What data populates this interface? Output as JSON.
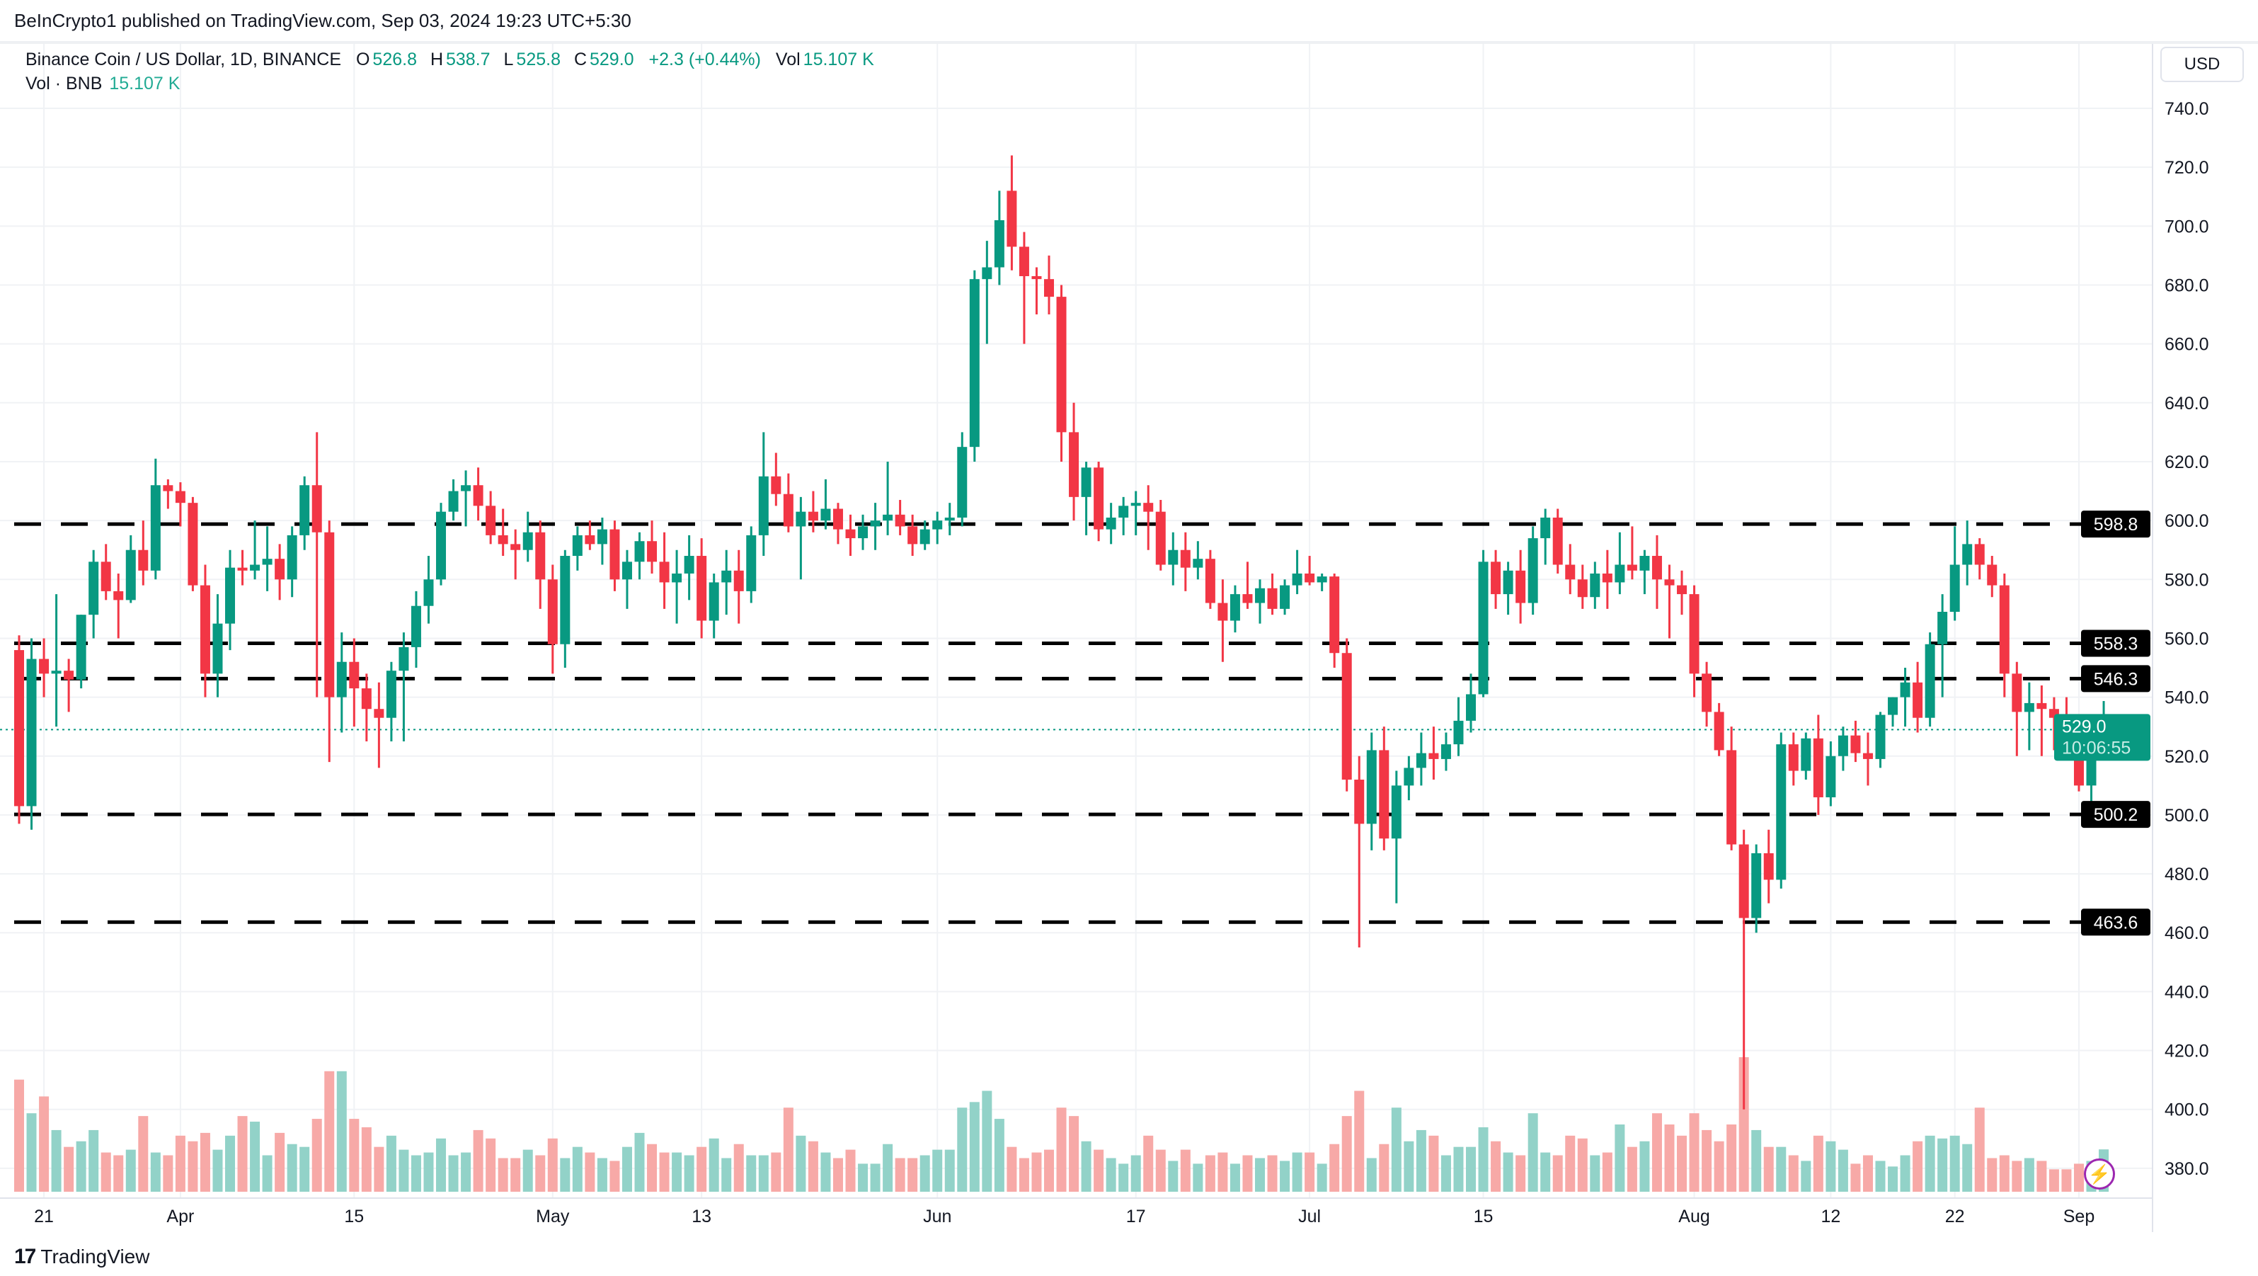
{
  "header": {
    "published": "BeInCrypto1 published on TradingView.com, Sep 03, 2024 19:23 UTC+5:30"
  },
  "legend": {
    "symbol": "Binance Coin / US Dollar, 1D, BINANCE",
    "o_label": "O",
    "o": "526.8",
    "h_label": "H",
    "h": "538.7",
    "l_label": "L",
    "l": "525.8",
    "c_label": "C",
    "c": "529.0",
    "change": "+2.3 (+0.44%)",
    "vol_label": "Vol",
    "vol": "15.107 K"
  },
  "volume_legend": {
    "label": "Vol · BNB",
    "value": "15.107 K"
  },
  "currency_button": "USD",
  "footer": {
    "logo_text": "TradingView",
    "logo_mark": "17"
  },
  "colors": {
    "up": "#089981",
    "down": "#f23645",
    "up_volume": "#92d2c8",
    "down_volume": "#f7a9a7",
    "level_line": "#000000",
    "indicator_icon": "#9c27b0"
  },
  "icons": {
    "indicator": "lightning-bolt-icon",
    "logo": "tradingview-logo-icon"
  },
  "chart_data": {
    "type": "candlestick",
    "title": "Binance Coin / US Dollar, 1D, BINANCE",
    "ylim": [
      370,
      750
    ],
    "y_ticks": [
      "740.0",
      "720.0",
      "700.0",
      "680.0",
      "660.0",
      "640.0",
      "620.0",
      "600.0",
      "580.0",
      "560.0",
      "540.0",
      "520.0",
      "500.0",
      "480.0",
      "460.0",
      "440.0",
      "420.0",
      "400.0",
      "380.0"
    ],
    "x_ticks": [
      {
        "label": "21",
        "date": "2024-03-21"
      },
      {
        "label": "Apr",
        "date": "2024-04-01"
      },
      {
        "label": "15",
        "date": "2024-04-15"
      },
      {
        "label": "May",
        "date": "2024-05-01"
      },
      {
        "label": "13",
        "date": "2024-05-13"
      },
      {
        "label": "Jun",
        "date": "2024-06-01"
      },
      {
        "label": "17",
        "date": "2024-06-17"
      },
      {
        "label": "Jul",
        "date": "2024-07-01"
      },
      {
        "label": "15",
        "date": "2024-07-15"
      },
      {
        "label": "Aug",
        "date": "2024-08-01"
      },
      {
        "label": "12",
        "date": "2024-08-12"
      },
      {
        "label": "22",
        "date": "2024-08-22"
      },
      {
        "label": "Sep",
        "date": "2024-09-01"
      }
    ],
    "grid": true,
    "levels": [
      "598.8",
      "558.3",
      "546.3",
      "500.2",
      "463.6"
    ],
    "last_price": {
      "value": "529.0",
      "countdown": "10:06:55"
    },
    "columns": [
      "date",
      "open",
      "high",
      "low",
      "close",
      "volume_k"
    ],
    "candles": [
      [
        "2024-03-19",
        556,
        561,
        497,
        503,
        40
      ],
      [
        "2024-03-20",
        503,
        560,
        495,
        553,
        28
      ],
      [
        "2024-03-21",
        553,
        560,
        540,
        548,
        34
      ],
      [
        "2024-03-22",
        548,
        575,
        530,
        549,
        22
      ],
      [
        "2024-03-23",
        549,
        553,
        535,
        546,
        16
      ],
      [
        "2024-03-24",
        546,
        568,
        543,
        568,
        18
      ],
      [
        "2024-03-25",
        568,
        590,
        560,
        586,
        22
      ],
      [
        "2024-03-26",
        586,
        592,
        573,
        576,
        14
      ],
      [
        "2024-03-27",
        576,
        582,
        560,
        573,
        13
      ],
      [
        "2024-03-28",
        573,
        595,
        572,
        590,
        15
      ],
      [
        "2024-03-29",
        590,
        600,
        578,
        583,
        27
      ],
      [
        "2024-03-30",
        583,
        621,
        580,
        612,
        14
      ],
      [
        "2024-03-31",
        612,
        614,
        604,
        610,
        13
      ],
      [
        "2024-04-01",
        610,
        613,
        598,
        606,
        20
      ],
      [
        "2024-04-02",
        606,
        608,
        576,
        578,
        18
      ],
      [
        "2024-04-03",
        578,
        585,
        540,
        548,
        21
      ],
      [
        "2024-04-04",
        548,
        575,
        540,
        565,
        15
      ],
      [
        "2024-04-05",
        565,
        590,
        556,
        584,
        20
      ],
      [
        "2024-04-06",
        584,
        590,
        578,
        583,
        27
      ],
      [
        "2024-04-07",
        583,
        600,
        580,
        585,
        25
      ],
      [
        "2024-04-08",
        585,
        598,
        576,
        587,
        13
      ],
      [
        "2024-04-09",
        587,
        592,
        573,
        580,
        21
      ],
      [
        "2024-04-10",
        580,
        598,
        574,
        595,
        17
      ],
      [
        "2024-04-11",
        595,
        615,
        590,
        612,
        16
      ],
      [
        "2024-04-12",
        612,
        630,
        540,
        596,
        26
      ],
      [
        "2024-04-13",
        596,
        600,
        518,
        540,
        43
      ],
      [
        "2024-04-14",
        540,
        562,
        528,
        552,
        43
      ],
      [
        "2024-04-15",
        552,
        560,
        530,
        543,
        26
      ],
      [
        "2024-04-16",
        543,
        548,
        525,
        536,
        23
      ],
      [
        "2024-04-17",
        536,
        545,
        516,
        533,
        16
      ],
      [
        "2024-04-18",
        533,
        552,
        525,
        549,
        20
      ],
      [
        "2024-04-19",
        549,
        562,
        525,
        557,
        15
      ],
      [
        "2024-04-20",
        557,
        576,
        550,
        571,
        13
      ],
      [
        "2024-04-21",
        571,
        588,
        565,
        580,
        14
      ],
      [
        "2024-04-22",
        580,
        606,
        578,
        603,
        19
      ],
      [
        "2024-04-23",
        603,
        614,
        600,
        610,
        13
      ],
      [
        "2024-04-24",
        610,
        617,
        598,
        612,
        14
      ],
      [
        "2024-04-25",
        612,
        618,
        600,
        605,
        22
      ],
      [
        "2024-04-26",
        605,
        610,
        592,
        595,
        19
      ],
      [
        "2024-04-27",
        595,
        604,
        588,
        592,
        12
      ],
      [
        "2024-04-28",
        592,
        597,
        580,
        590,
        12
      ],
      [
        "2024-04-29",
        590,
        603,
        586,
        596,
        15
      ],
      [
        "2024-04-30",
        596,
        600,
        570,
        580,
        13
      ],
      [
        "2024-05-01",
        580,
        585,
        548,
        558,
        19
      ],
      [
        "2024-05-02",
        558,
        590,
        550,
        588,
        12
      ],
      [
        "2024-05-03",
        588,
        598,
        583,
        595,
        16
      ],
      [
        "2024-05-04",
        595,
        600,
        590,
        592,
        14
      ],
      [
        "2024-05-05",
        592,
        601,
        585,
        597,
        12
      ],
      [
        "2024-05-06",
        597,
        600,
        576,
        580,
        11
      ],
      [
        "2024-05-07",
        580,
        590,
        570,
        586,
        16
      ],
      [
        "2024-05-08",
        586,
        596,
        580,
        593,
        21
      ],
      [
        "2024-05-09",
        593,
        600,
        582,
        586,
        17
      ],
      [
        "2024-05-10",
        586,
        596,
        570,
        579,
        14
      ],
      [
        "2024-05-11",
        579,
        590,
        565,
        582,
        14
      ],
      [
        "2024-05-12",
        582,
        595,
        573,
        588,
        13
      ],
      [
        "2024-05-13",
        588,
        594,
        560,
        566,
        16
      ],
      [
        "2024-05-14",
        566,
        582,
        560,
        579,
        19
      ],
      [
        "2024-05-15",
        579,
        590,
        568,
        583,
        12
      ],
      [
        "2024-05-16",
        583,
        590,
        565,
        576,
        17
      ],
      [
        "2024-05-17",
        576,
        598,
        572,
        595,
        13
      ],
      [
        "2024-05-18",
        595,
        630,
        588,
        615,
        13
      ],
      [
        "2024-05-19",
        615,
        623,
        605,
        609,
        14
      ],
      [
        "2024-05-20",
        609,
        616,
        596,
        598,
        30
      ],
      [
        "2024-05-21",
        598,
        608,
        580,
        603,
        20
      ],
      [
        "2024-05-22",
        603,
        610,
        596,
        600,
        18
      ],
      [
        "2024-05-23",
        600,
        614,
        597,
        604,
        14
      ],
      [
        "2024-05-24",
        604,
        606,
        592,
        597,
        12
      ],
      [
        "2024-05-25",
        597,
        602,
        588,
        594,
        15
      ],
      [
        "2024-05-26",
        594,
        602,
        590,
        598,
        10
      ],
      [
        "2024-05-27",
        598,
        606,
        590,
        600,
        10
      ],
      [
        "2024-05-28",
        600,
        620,
        595,
        602,
        17
      ],
      [
        "2024-05-29",
        602,
        607,
        595,
        598,
        12
      ],
      [
        "2024-05-30",
        598,
        602,
        588,
        592,
        12
      ],
      [
        "2024-05-31",
        592,
        600,
        590,
        597,
        13
      ],
      [
        "2024-06-01",
        597,
        603,
        592,
        600,
        15
      ],
      [
        "2024-06-02",
        600,
        606,
        595,
        601,
        15
      ],
      [
        "2024-06-03",
        601,
        630,
        598,
        625,
        30
      ],
      [
        "2024-06-04",
        625,
        685,
        620,
        682,
        32
      ],
      [
        "2024-06-05",
        682,
        695,
        660,
        686,
        36
      ],
      [
        "2024-06-06",
        686,
        712,
        680,
        702,
        26
      ],
      [
        "2024-06-07",
        712,
        724,
        685,
        693,
        16
      ],
      [
        "2024-06-08",
        693,
        698,
        660,
        683,
        12
      ],
      [
        "2024-06-09",
        683,
        686,
        670,
        682,
        14
      ],
      [
        "2024-06-10",
        682,
        690,
        670,
        676,
        15
      ],
      [
        "2024-06-11",
        676,
        680,
        620,
        630,
        30
      ],
      [
        "2024-06-12",
        630,
        640,
        600,
        608,
        27
      ],
      [
        "2024-06-13",
        608,
        620,
        595,
        618,
        18
      ],
      [
        "2024-06-14",
        618,
        620,
        593,
        597,
        15
      ],
      [
        "2024-06-15",
        597,
        606,
        592,
        601,
        12
      ],
      [
        "2024-06-16",
        601,
        608,
        595,
        605,
        10
      ],
      [
        "2024-06-17",
        605,
        610,
        595,
        606,
        13
      ],
      [
        "2024-06-18",
        606,
        612,
        590,
        603,
        20
      ],
      [
        "2024-06-19",
        603,
        607,
        583,
        585,
        15
      ],
      [
        "2024-06-20",
        585,
        596,
        578,
        590,
        11
      ],
      [
        "2024-06-21",
        590,
        596,
        576,
        584,
        15
      ],
      [
        "2024-06-22",
        584,
        593,
        580,
        587,
        10
      ],
      [
        "2024-06-23",
        587,
        590,
        570,
        572,
        13
      ],
      [
        "2024-06-24",
        572,
        580,
        552,
        566,
        14
      ],
      [
        "2024-06-25",
        566,
        578,
        562,
        575,
        10
      ],
      [
        "2024-06-26",
        575,
        586,
        570,
        572,
        13
      ],
      [
        "2024-06-27",
        572,
        580,
        565,
        577,
        12
      ],
      [
        "2024-06-28",
        577,
        582,
        568,
        570,
        13
      ],
      [
        "2024-06-29",
        570,
        580,
        568,
        578,
        11
      ],
      [
        "2024-06-30",
        578,
        590,
        575,
        582,
        14
      ],
      [
        "2024-07-01",
        582,
        588,
        578,
        579,
        14
      ],
      [
        "2024-07-02",
        579,
        582,
        576,
        581,
        10
      ],
      [
        "2024-07-03",
        581,
        582,
        550,
        555,
        17
      ],
      [
        "2024-07-04",
        555,
        560,
        508,
        512,
        27
      ],
      [
        "2024-07-05",
        512,
        520,
        455,
        497,
        36
      ],
      [
        "2024-07-06",
        497,
        528,
        488,
        522,
        12
      ],
      [
        "2024-07-07",
        522,
        530,
        488,
        492,
        17
      ],
      [
        "2024-07-08",
        492,
        515,
        470,
        510,
        30
      ],
      [
        "2024-07-09",
        510,
        520,
        505,
        516,
        18
      ],
      [
        "2024-07-10",
        516,
        528,
        510,
        521,
        22
      ],
      [
        "2024-07-11",
        521,
        530,
        512,
        519,
        20
      ],
      [
        "2024-07-12",
        519,
        528,
        515,
        524,
        13
      ],
      [
        "2024-07-13",
        524,
        540,
        520,
        532,
        16
      ],
      [
        "2024-07-14",
        532,
        548,
        528,
        541,
        16
      ],
      [
        "2024-07-15",
        541,
        590,
        540,
        586,
        23
      ],
      [
        "2024-07-16",
        586,
        590,
        570,
        575,
        18
      ],
      [
        "2024-07-17",
        575,
        586,
        568,
        583,
        14
      ],
      [
        "2024-07-18",
        583,
        590,
        565,
        572,
        13
      ],
      [
        "2024-07-19",
        572,
        598,
        568,
        594,
        28
      ],
      [
        "2024-07-20",
        594,
        604,
        585,
        601,
        14
      ],
      [
        "2024-07-21",
        601,
        604,
        582,
        585,
        13
      ],
      [
        "2024-07-22",
        585,
        592,
        575,
        580,
        20
      ],
      [
        "2024-07-23",
        580,
        585,
        570,
        574,
        19
      ],
      [
        "2024-07-24",
        574,
        586,
        570,
        582,
        13
      ],
      [
        "2024-07-25",
        582,
        590,
        570,
        579,
        14
      ],
      [
        "2024-07-26",
        579,
        596,
        575,
        585,
        24
      ],
      [
        "2024-07-27",
        585,
        598,
        580,
        583,
        16
      ],
      [
        "2024-07-28",
        583,
        590,
        575,
        588,
        18
      ],
      [
        "2024-07-29",
        588,
        595,
        570,
        580,
        28
      ],
      [
        "2024-07-30",
        580,
        585,
        560,
        578,
        24
      ],
      [
        "2024-07-31",
        578,
        583,
        568,
        575,
        20
      ],
      [
        "2024-08-01",
        575,
        578,
        540,
        548,
        28
      ],
      [
        "2024-08-02",
        548,
        552,
        530,
        535,
        22
      ],
      [
        "2024-08-03",
        535,
        538,
        520,
        522,
        18
      ],
      [
        "2024-08-04",
        522,
        530,
        488,
        490,
        24
      ],
      [
        "2024-08-05",
        490,
        495,
        400,
        465,
        48
      ],
      [
        "2024-08-06",
        465,
        490,
        460,
        487,
        22
      ],
      [
        "2024-08-07",
        487,
        495,
        470,
        478,
        16
      ],
      [
        "2024-08-08",
        478,
        528,
        475,
        524,
        16
      ],
      [
        "2024-08-09",
        524,
        528,
        510,
        515,
        13
      ],
      [
        "2024-08-10",
        515,
        528,
        512,
        526,
        11
      ],
      [
        "2024-08-11",
        526,
        534,
        500,
        506,
        20
      ],
      [
        "2024-08-12",
        506,
        525,
        503,
        520,
        18
      ],
      [
        "2024-08-13",
        520,
        530,
        515,
        527,
        15
      ],
      [
        "2024-08-14",
        527,
        532,
        518,
        521,
        10
      ],
      [
        "2024-08-15",
        521,
        528,
        510,
        519,
        13
      ],
      [
        "2024-08-16",
        519,
        535,
        516,
        534,
        11
      ],
      [
        "2024-08-17",
        534,
        540,
        530,
        540,
        9
      ],
      [
        "2024-08-18",
        540,
        550,
        530,
        545,
        13
      ],
      [
        "2024-08-19",
        545,
        552,
        528,
        533,
        18
      ],
      [
        "2024-08-20",
        533,
        562,
        530,
        558,
        20
      ],
      [
        "2024-08-21",
        558,
        575,
        540,
        569,
        19
      ],
      [
        "2024-08-22",
        569,
        598,
        566,
        585,
        20
      ],
      [
        "2024-08-23",
        585,
        600,
        578,
        592,
        17
      ],
      [
        "2024-08-24",
        592,
        594,
        580,
        585,
        30
      ],
      [
        "2024-08-25",
        585,
        588,
        574,
        578,
        12
      ],
      [
        "2024-08-26",
        578,
        582,
        540,
        548,
        13
      ],
      [
        "2024-08-27",
        548,
        552,
        520,
        535,
        11
      ],
      [
        "2024-08-28",
        535,
        545,
        522,
        538,
        12
      ],
      [
        "2024-08-29",
        538,
        544,
        520,
        536,
        11
      ],
      [
        "2024-08-30",
        536,
        540,
        522,
        533,
        8
      ],
      [
        "2024-08-31",
        533,
        540,
        528,
        530,
        8
      ],
      [
        "2024-09-01",
        530,
        532,
        508,
        510,
        10
      ],
      [
        "2024-09-02",
        510,
        530,
        500,
        527,
        11
      ],
      [
        "2024-09-03",
        526.8,
        538.7,
        525.8,
        529.0,
        15.107
      ]
    ]
  }
}
